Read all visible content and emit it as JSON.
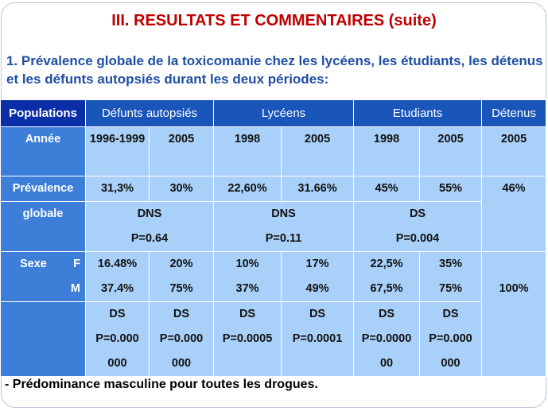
{
  "title": "III. RESULTATS ET COMMENTAIRES (suite)",
  "subtitle": "1. Prévalence globale de la toxicomanie chez les lycéens, les étudiants, les détenus et les défunts autopsiés durant les deux périodes:",
  "table": {
    "header": {
      "populations": "Populations",
      "defunts": "Défunts autopsiés",
      "lyceens": "Lycéens",
      "etudiants": "Etudiants",
      "detenus": "Détenus"
    },
    "annee": {
      "label": "Année",
      "values": [
        "1996-1999",
        "2005",
        "1998",
        "2005",
        "1998",
        "2005",
        "2005"
      ]
    },
    "prevalence": {
      "label_line1": "Prévalence",
      "label_line2": "globale",
      "values": [
        "31,3%",
        "30%",
        "22,60%",
        "31.66%",
        "45%",
        "55%",
        "46%"
      ],
      "tests": [
        {
          "result": "DNS",
          "p": "P=0.64"
        },
        {
          "result": "DNS",
          "p": "P=0.11"
        },
        {
          "result": "DS",
          "p": "P=0.004"
        }
      ]
    },
    "sexe": {
      "label": "Sexe",
      "f_label": "F",
      "m_label": "M",
      "f_values": [
        "16.48%",
        "20%",
        "10%",
        "17%",
        "22,5%",
        "35%"
      ],
      "m_values": [
        "37.4%",
        "75%",
        "37%",
        "49%",
        "67,5%",
        "75%"
      ],
      "detenus_value": "100%",
      "tests": [
        {
          "result": "DS",
          "p": "P=0.000 000"
        },
        {
          "result": "DS",
          "p": "P=0.000 000"
        },
        {
          "result": "DS",
          "p": "P=0.0005"
        },
        {
          "result": "DS",
          "p": "P=0.0001"
        },
        {
          "result": "DS",
          "p": "P=0.0000 00"
        },
        {
          "result": "DS",
          "p": "P=0.000 000"
        }
      ]
    }
  },
  "footer": "- Prédominance masculine pour toutes les drogues."
}
